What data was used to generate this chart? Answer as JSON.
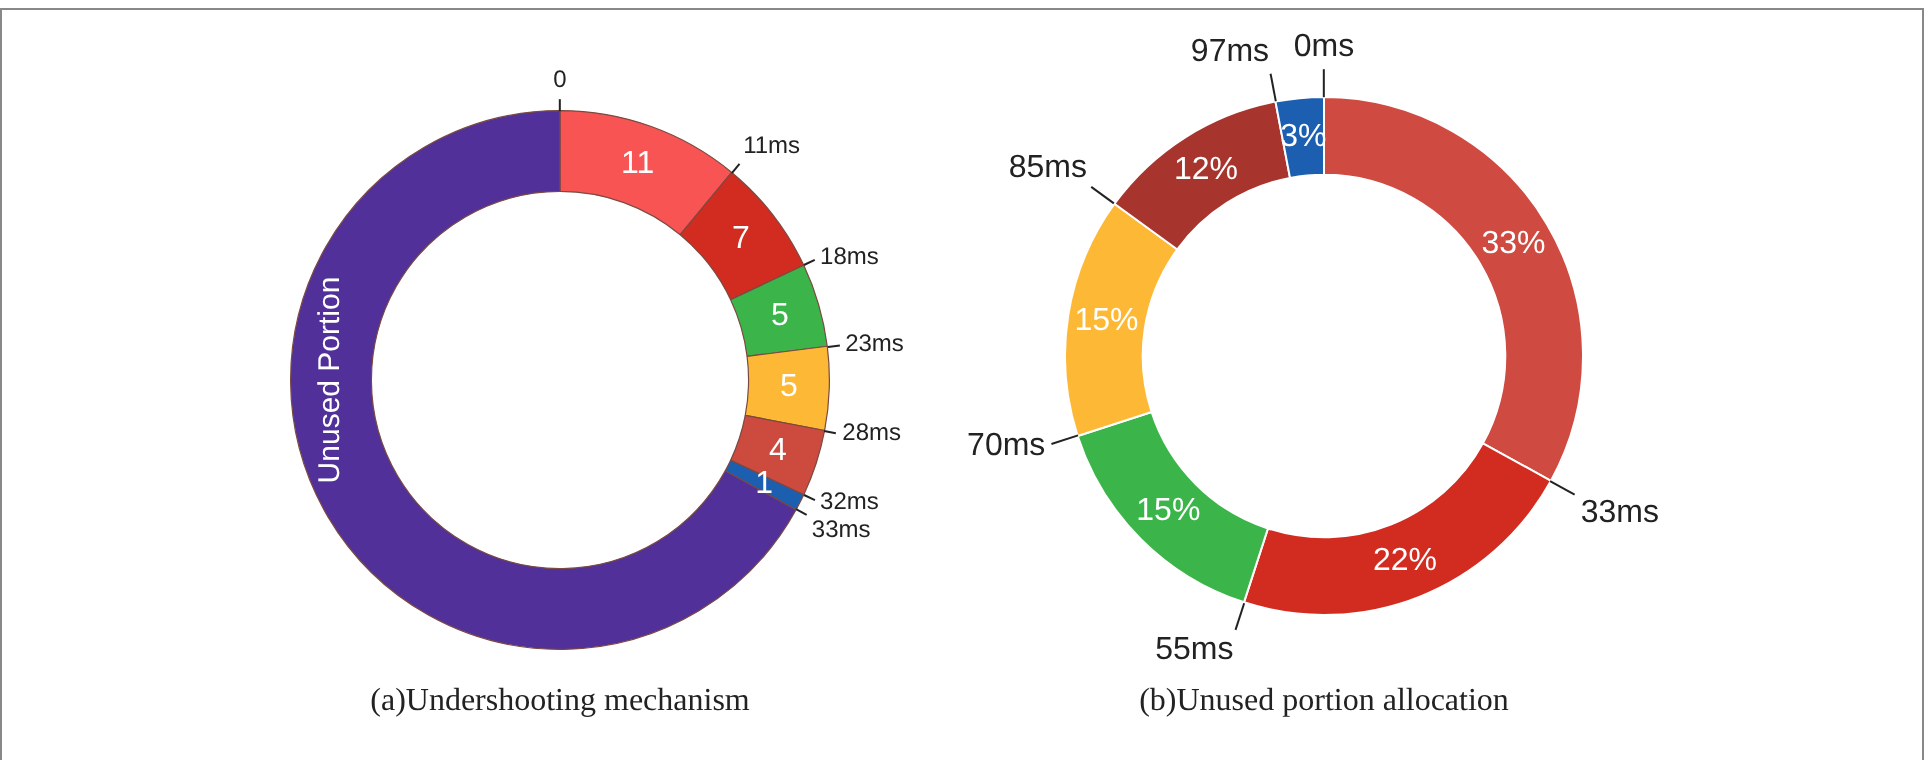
{
  "chart_data": [
    {
      "type": "donut",
      "title": "(a)Undershooting mechanism",
      "categories": [
        null,
        null,
        null,
        null,
        null,
        null,
        "Unused Portion"
      ],
      "values": [
        11,
        7,
        5,
        5,
        4,
        1,
        67
      ],
      "colors": [
        "#f95454",
        "#d22b20",
        "#3bb54a",
        "#fdb935",
        "#cd4a3f",
        "#1c5eb0",
        "#51309a"
      ],
      "value_labels": [
        "11",
        "7",
        "5",
        "5",
        "4",
        "1",
        null
      ],
      "annotations": [
        "0",
        "11ms",
        "18ms",
        "23ms",
        "28ms",
        "32ms",
        "33ms"
      ],
      "legend": false
    },
    {
      "type": "donut",
      "title": "(b)Unused portion allocation",
      "categories": [
        null,
        null,
        null,
        null,
        null,
        null
      ],
      "values": [
        33,
        22,
        15,
        15,
        12,
        3
      ],
      "colors": [
        "#cf4a40",
        "#d22b20",
        "#3bb54a",
        "#fdb935",
        "#a8352d",
        "#1c5eb0"
      ],
      "value_labels": [
        "33%",
        "22%",
        "15%",
        "15%",
        "12%",
        "3%"
      ],
      "annotations": [
        "0ms",
        "33ms",
        "55ms",
        "70ms",
        "85ms",
        "97ms"
      ],
      "legend": false
    }
  ]
}
